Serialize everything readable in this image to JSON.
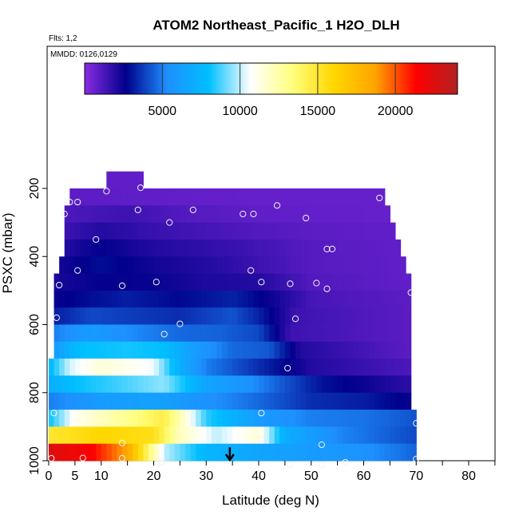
{
  "chart_data": {
    "type": "heatmap",
    "title": "ATOM2 Northeast_Pacific_1 H2O_DLH",
    "flights_note": "Flts: 1,2",
    "dates_note": "MMDD: 0126,0129",
    "xlabel": "Latitude (deg N)",
    "ylabel": "PSXC (mbar)",
    "xlim": [
      0,
      85
    ],
    "ylim": [
      1000,
      0
    ],
    "x_ticks": [
      0,
      5,
      10,
      20,
      30,
      40,
      50,
      60,
      70,
      80
    ],
    "x_minor_ticks": [
      0,
      5,
      10,
      15,
      20,
      25,
      30,
      35,
      40,
      45,
      50,
      55,
      60,
      65,
      70,
      75,
      80,
      85
    ],
    "y_ticks": [
      200,
      400,
      600,
      800,
      1000
    ],
    "colorbar": {
      "min": 0,
      "max": 24000,
      "ticks": [
        5000,
        10000,
        15000,
        20000
      ],
      "colors": [
        "#8a2be2",
        "#00008b",
        "#1e90ff",
        "#00bfff",
        "#ffffff",
        "#ffff80",
        "#ffd700",
        "#ffa500",
        "#ff0000",
        "#b22222"
      ]
    },
    "bin_pressures": [
      175,
      225,
      275,
      325,
      375,
      425,
      475,
      525,
      575,
      625,
      675,
      725,
      775,
      825,
      875,
      925,
      975
    ],
    "bin_height_mbar": 50,
    "rows": [
      {
        "p": 175,
        "lat_min": 11,
        "lat_max": 18,
        "values": [
          [
            11,
            800
          ],
          [
            18,
            800
          ]
        ]
      },
      {
        "p": 225,
        "lat_min": 4,
        "lat_max": 64,
        "values": [
          [
            4,
            900
          ],
          [
            20,
            800
          ],
          [
            40,
            700
          ],
          [
            64,
            700
          ]
        ]
      },
      {
        "p": 275,
        "lat_min": 3,
        "lat_max": 65,
        "values": [
          [
            3,
            1200
          ],
          [
            15,
            1500
          ],
          [
            25,
            1100
          ],
          [
            40,
            800
          ],
          [
            65,
            700
          ]
        ]
      },
      {
        "p": 325,
        "lat_min": 3,
        "lat_max": 66,
        "values": [
          [
            3,
            1500
          ],
          [
            10,
            2000
          ],
          [
            20,
            1600
          ],
          [
            35,
            1200
          ],
          [
            50,
            900
          ],
          [
            66,
            800
          ]
        ]
      },
      {
        "p": 375,
        "lat_min": 3,
        "lat_max": 67,
        "values": [
          [
            3,
            2000
          ],
          [
            10,
            2600
          ],
          [
            20,
            2000
          ],
          [
            35,
            1600
          ],
          [
            50,
            1000
          ],
          [
            67,
            800
          ]
        ]
      },
      {
        "p": 425,
        "lat_min": 2,
        "lat_max": 68,
        "values": [
          [
            2,
            2300
          ],
          [
            10,
            2900
          ],
          [
            20,
            2300
          ],
          [
            30,
            2000
          ],
          [
            40,
            1500
          ],
          [
            50,
            1000
          ],
          [
            68,
            800
          ]
        ]
      },
      {
        "p": 475,
        "lat_min": 1,
        "lat_max": 69,
        "values": [
          [
            1,
            2200
          ],
          [
            10,
            2600
          ],
          [
            20,
            2500
          ],
          [
            30,
            2100
          ],
          [
            40,
            2000
          ],
          [
            50,
            1100
          ],
          [
            69,
            800
          ]
        ]
      },
      {
        "p": 525,
        "lat_min": 1,
        "lat_max": 69,
        "values": [
          [
            1,
            2500
          ],
          [
            10,
            3000
          ],
          [
            15,
            3200
          ],
          [
            25,
            2800
          ],
          [
            35,
            3300
          ],
          [
            42,
            2500
          ],
          [
            50,
            1300
          ],
          [
            69,
            900
          ]
        ]
      },
      {
        "p": 575,
        "lat_min": 1,
        "lat_max": 69,
        "values": [
          [
            1,
            3200
          ],
          [
            8,
            4000
          ],
          [
            15,
            3800
          ],
          [
            25,
            3500
          ],
          [
            35,
            4200
          ],
          [
            40,
            3300
          ],
          [
            47,
            1500
          ],
          [
            69,
            900
          ]
        ]
      },
      {
        "p": 625,
        "lat_min": 1,
        "lat_max": 69,
        "values": [
          [
            1,
            5000
          ],
          [
            8,
            6000
          ],
          [
            15,
            5300
          ],
          [
            25,
            4600
          ],
          [
            32,
            4500
          ],
          [
            40,
            4000
          ],
          [
            46,
            1500
          ],
          [
            69,
            900
          ]
        ]
      },
      {
        "p": 675,
        "lat_min": 1,
        "lat_max": 69,
        "values": [
          [
            1,
            6000
          ],
          [
            6,
            8000
          ],
          [
            15,
            8200
          ],
          [
            22,
            8000
          ],
          [
            28,
            6000
          ],
          [
            35,
            4600
          ],
          [
            42,
            4300
          ],
          [
            48,
            2000
          ],
          [
            69,
            900
          ]
        ]
      },
      {
        "p": 725,
        "lat_min": 0,
        "lat_max": 69,
        "values": [
          [
            0,
            7500
          ],
          [
            4,
            10200
          ],
          [
            10,
            11500
          ],
          [
            20,
            10500
          ],
          [
            25,
            7000
          ],
          [
            30,
            5000
          ],
          [
            40,
            3500
          ],
          [
            50,
            2000
          ],
          [
            69,
            1200
          ]
        ]
      },
      {
        "p": 775,
        "lat_min": 0,
        "lat_max": 69,
        "values": [
          [
            0,
            7000
          ],
          [
            5,
            8000
          ],
          [
            15,
            8800
          ],
          [
            22,
            9500
          ],
          [
            30,
            6500
          ],
          [
            38,
            5500
          ],
          [
            45,
            4200
          ],
          [
            52,
            3000
          ],
          [
            69,
            1800
          ]
        ]
      },
      {
        "p": 825,
        "lat_min": 0,
        "lat_max": 69,
        "values": [
          [
            0,
            5000
          ],
          [
            10,
            6000
          ],
          [
            20,
            6300
          ],
          [
            30,
            5500
          ],
          [
            40,
            4600
          ],
          [
            50,
            3500
          ],
          [
            60,
            3200
          ],
          [
            69,
            2500
          ]
        ]
      },
      {
        "p": 875,
        "lat_min": 0,
        "lat_max": 70,
        "values": [
          [
            0,
            8000
          ],
          [
            5,
            11000
          ],
          [
            15,
            13000
          ],
          [
            22,
            14500
          ],
          [
            30,
            8500
          ],
          [
            40,
            6000
          ],
          [
            50,
            5000
          ],
          [
            60,
            4800
          ],
          [
            70,
            4200
          ]
        ]
      },
      {
        "p": 925,
        "lat_min": 0,
        "lat_max": 70,
        "values": [
          [
            0,
            15000
          ],
          [
            10,
            16000
          ],
          [
            20,
            15500
          ],
          [
            25,
            12000
          ],
          [
            32,
            10000
          ],
          [
            40,
            11500
          ],
          [
            45,
            7000
          ],
          [
            55,
            5200
          ],
          [
            70,
            4000
          ]
        ]
      },
      {
        "p": 975,
        "lat_min": 0,
        "lat_max": 70,
        "values": [
          [
            0,
            22500
          ],
          [
            8,
            21500
          ],
          [
            15,
            18500
          ],
          [
            18,
            15000
          ],
          [
            22,
            10000
          ],
          [
            30,
            7500
          ],
          [
            40,
            6500
          ],
          [
            50,
            6000
          ],
          [
            60,
            5500
          ],
          [
            70,
            4500
          ]
        ]
      }
    ],
    "sample_points": [
      [
        11,
        208
      ],
      [
        17.5,
        198
      ],
      [
        4,
        240
      ],
      [
        5.5,
        240
      ],
      [
        3,
        275
      ],
      [
        17,
        263
      ],
      [
        23,
        300
      ],
      [
        27.5,
        263
      ],
      [
        37,
        275
      ],
      [
        39,
        275
      ],
      [
        43.5,
        250
      ],
      [
        49,
        287
      ],
      [
        63,
        228
      ],
      [
        9,
        350
      ],
      [
        53,
        378
      ],
      [
        54,
        378
      ],
      [
        5.5,
        441
      ],
      [
        14,
        486
      ],
      [
        20.5,
        475
      ],
      [
        38.5,
        441
      ],
      [
        40.5,
        475
      ],
      [
        46,
        480
      ],
      [
        51,
        478
      ],
      [
        53,
        495
      ],
      [
        69,
        506
      ],
      [
        2,
        484
      ],
      [
        1.5,
        580
      ],
      [
        25,
        598
      ],
      [
        22,
        628
      ],
      [
        47,
        583
      ],
      [
        45.5,
        728
      ],
      [
        1,
        860
      ],
      [
        40.5,
        860
      ],
      [
        70,
        890
      ],
      [
        14,
        948
      ],
      [
        40.5,
        936
      ],
      [
        52,
        953
      ],
      [
        0.5,
        993
      ],
      [
        6.5,
        992
      ],
      [
        14,
        993
      ],
      [
        21.5,
        1003
      ],
      [
        46,
        1012
      ],
      [
        52,
        1012
      ],
      [
        56.5,
        1005
      ],
      [
        70,
        995
      ]
    ],
    "marker": {
      "lat": 34.5,
      "p_top": 960,
      "p_bottom": 1000
    }
  }
}
